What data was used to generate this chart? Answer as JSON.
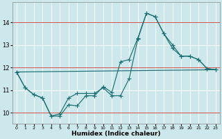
{
  "xlabel": "Humidex (Indice chaleur)",
  "bg_color": "#cde8ec",
  "grid_color": "#b8d8dc",
  "line_color": "#1a7070",
  "red_line_color": "#cc3333",
  "xlim": [
    -0.5,
    23.5
  ],
  "ylim": [
    9.5,
    14.9
  ],
  "xticks": [
    0,
    1,
    2,
    3,
    4,
    5,
    6,
    7,
    8,
    9,
    10,
    11,
    12,
    13,
    14,
    15,
    16,
    17,
    18,
    19,
    20,
    21,
    22,
    23
  ],
  "yticks": [
    10,
    11,
    12,
    13,
    14
  ],
  "red_hlines": [
    10,
    12,
    14
  ],
  "line1_x": [
    0,
    1,
    2,
    3,
    4,
    5,
    6,
    7,
    8,
    9,
    10,
    11,
    12,
    13,
    14,
    15,
    16,
    17,
    18,
    19,
    20,
    21,
    22,
    23
  ],
  "line1_y": [
    11.8,
    11.1,
    10.8,
    10.65,
    9.85,
    9.85,
    10.35,
    10.3,
    10.75,
    10.75,
    11.15,
    10.9,
    12.25,
    12.35,
    13.3,
    14.4,
    14.25,
    13.5,
    13.0,
    12.5,
    12.5,
    12.35,
    11.95,
    11.9
  ],
  "line2_x": [
    0,
    1,
    2,
    3,
    4,
    5,
    6,
    7,
    8,
    9,
    10,
    11,
    12,
    13,
    14,
    15,
    16,
    17,
    18,
    19,
    20,
    21,
    22,
    23
  ],
  "line2_y": [
    11.8,
    11.1,
    10.8,
    10.65,
    9.85,
    9.95,
    10.65,
    10.85,
    10.85,
    10.85,
    11.1,
    10.75,
    10.75,
    11.5,
    13.25,
    14.4,
    14.25,
    13.5,
    12.85,
    12.5,
    12.5,
    12.35,
    11.95,
    11.9
  ],
  "line3_x": [
    0,
    23
  ],
  "line3_y": [
    11.8,
    11.9
  ]
}
